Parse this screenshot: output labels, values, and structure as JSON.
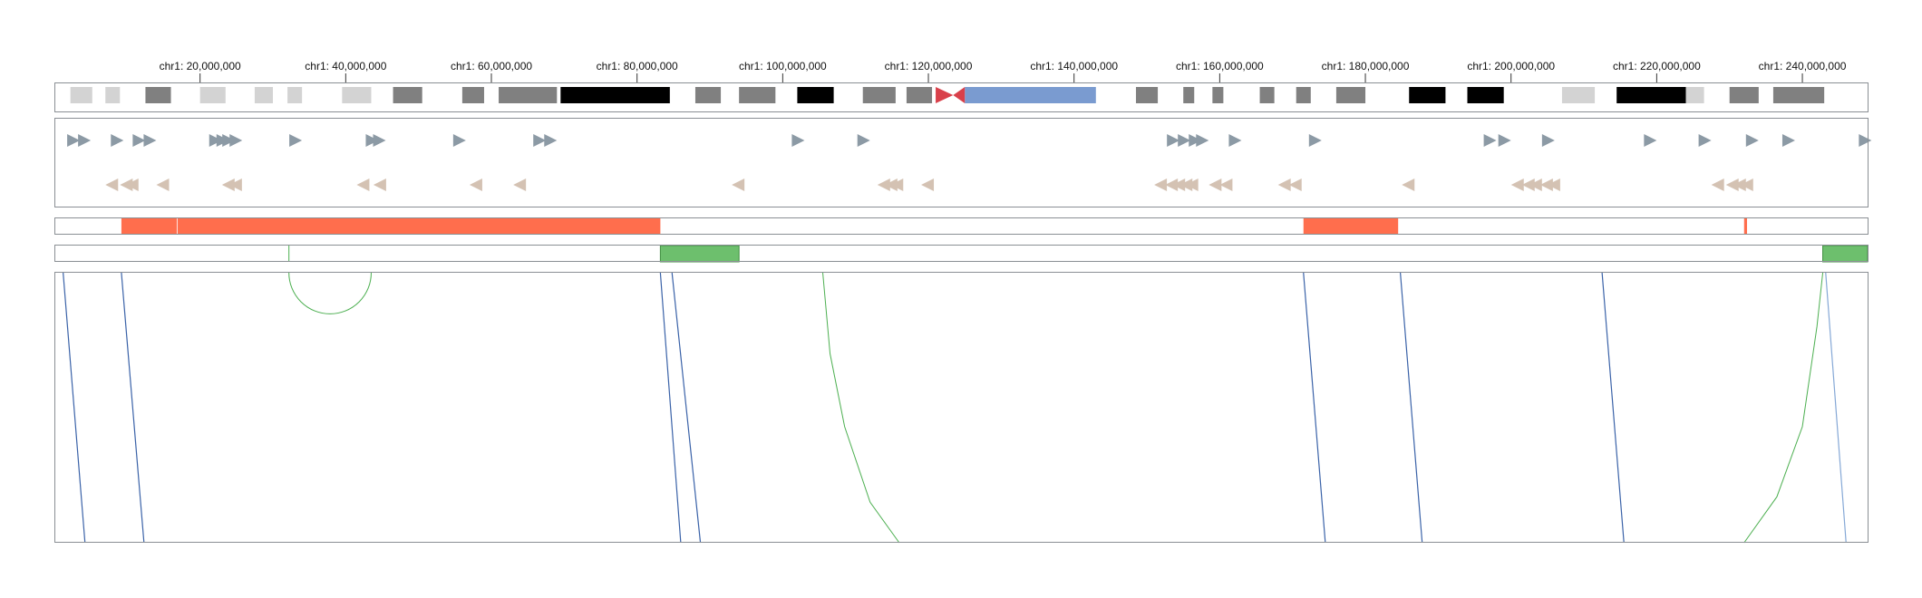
{
  "genome": {
    "chromosome": "chr1",
    "length": 248956422,
    "ticks": [
      {
        "pos": 20000000,
        "label": "chr1: 20,000,000"
      },
      {
        "pos": 40000000,
        "label": "chr1: 40,000,000"
      },
      {
        "pos": 60000000,
        "label": "chr1: 60,000,000"
      },
      {
        "pos": 80000000,
        "label": "chr1: 80,000,000"
      },
      {
        "pos": 100000000,
        "label": "chr1: 100,000,000"
      },
      {
        "pos": 120000000,
        "label": "chr1: 120,000,000"
      },
      {
        "pos": 140000000,
        "label": "chr1: 140,000,000"
      },
      {
        "pos": 160000000,
        "label": "chr1: 160,000,000"
      },
      {
        "pos": 180000000,
        "label": "chr1: 180,000,000"
      },
      {
        "pos": 200000000,
        "label": "chr1: 200,000,000"
      },
      {
        "pos": 220000000,
        "label": "chr1: 220,000,000"
      },
      {
        "pos": 240000000,
        "label": "chr1: 240,000,000"
      }
    ]
  },
  "colors": {
    "gpos25": "#d3d3d3",
    "gpos50": "#a8a8a8",
    "gpos75": "#808080",
    "gpos100": "#000000",
    "acen": "#d9404a",
    "gvar": "#7a9bd0",
    "forward": "#8c9aa5",
    "reverse": "#d4c2b3",
    "region_a": "#ff6e4d",
    "region_b": "#6dbf6d",
    "link_blue": "#3a62a8",
    "link_lightblue": "#85a8d6",
    "link_green": "#4caf50",
    "frame": "#8a8f94"
  },
  "ideogram": {
    "bands": [
      {
        "start": 2200000,
        "end": 5200000,
        "stain": "gpos25"
      },
      {
        "start": 7000000,
        "end": 9000000,
        "stain": "gpos25"
      },
      {
        "start": 12500000,
        "end": 16000000,
        "stain": "gpos75"
      },
      {
        "start": 20000000,
        "end": 23500000,
        "stain": "gpos25"
      },
      {
        "start": 27500000,
        "end": 30000000,
        "stain": "gpos25"
      },
      {
        "start": 32000000,
        "end": 34000000,
        "stain": "gpos25"
      },
      {
        "start": 39500000,
        "end": 43500000,
        "stain": "gpos25"
      },
      {
        "start": 46500000,
        "end": 50500000,
        "stain": "gpos75"
      },
      {
        "start": 56000000,
        "end": 59000000,
        "stain": "gpos75"
      },
      {
        "start": 61000000,
        "end": 69000000,
        "stain": "gpos75"
      },
      {
        "start": 69500000,
        "end": 84500000,
        "stain": "gpos100"
      },
      {
        "start": 88000000,
        "end": 91500000,
        "stain": "gpos75"
      },
      {
        "start": 94000000,
        "end": 99000000,
        "stain": "gpos75"
      },
      {
        "start": 102000000,
        "end": 107000000,
        "stain": "gpos100"
      },
      {
        "start": 111000000,
        "end": 115500000,
        "stain": "gpos75"
      },
      {
        "start": 117000000,
        "end": 120500000,
        "stain": "gpos75"
      },
      {
        "start": 124000000,
        "end": 236500000,
        "stain": "none"
      },
      {
        "start": 125000000,
        "end": 143000000,
        "stain": "gvar"
      },
      {
        "start": 148500000,
        "end": 151500000,
        "stain": "gpos75"
      },
      {
        "start": 155000000,
        "end": 156500000,
        "stain": "gpos75"
      },
      {
        "start": 159000000,
        "end": 160500000,
        "stain": "gpos75"
      },
      {
        "start": 165500000,
        "end": 167500000,
        "stain": "gpos75"
      },
      {
        "start": 170500000,
        "end": 172500000,
        "stain": "gpos75"
      },
      {
        "start": 176000000,
        "end": 180000000,
        "stain": "gpos75"
      },
      {
        "start": 186000000,
        "end": 191000000,
        "stain": "gpos100"
      },
      {
        "start": 194000000,
        "end": 199000000,
        "stain": "gpos100"
      },
      {
        "start": 207000000,
        "end": 211500000,
        "stain": "gpos25"
      },
      {
        "start": 214500000,
        "end": 224000000,
        "stain": "gpos100"
      },
      {
        "start": 224000000,
        "end": 226500000,
        "stain": "gpos25"
      },
      {
        "start": 230000000,
        "end": 234000000,
        "stain": "gpos75"
      },
      {
        "start": 236000000,
        "end": 243000000,
        "stain": "gpos75"
      }
    ],
    "centromere": {
      "start": 121000000,
      "mid": 123400000,
      "end": 125000000
    }
  },
  "forward_strand": [
    2500000,
    4000000,
    8500000,
    11500000,
    13000000,
    22000000,
    23000000,
    23800000,
    24800000,
    33000000,
    43500000,
    44500000,
    55500000,
    66500000,
    68000000,
    102000000,
    111000000,
    153500000,
    155000000,
    156500000,
    157500000,
    162000000,
    173000000,
    197000000,
    199000000,
    205000000,
    219000000,
    226500000,
    233000000,
    238000000,
    248500000
  ],
  "reverse_strand": [
    8000000,
    10000000,
    10800000,
    15000000,
    24000000,
    25000000,
    42500000,
    44800000,
    58000000,
    64000000,
    94000000,
    114000000,
    115000000,
    115800000,
    120000000,
    152000000,
    153500000,
    154500000,
    155500000,
    156300000,
    159500000,
    161000000,
    169000000,
    170500000,
    186000000,
    201000000,
    202500000,
    203500000,
    205000000,
    206000000,
    228500000,
    230500000,
    231500000,
    232500000
  ],
  "region_track_a": [
    {
      "start": 9200000,
      "end": 16800000
    },
    {
      "start": 16900000,
      "end": 83200000
    },
    {
      "start": 171500000,
      "end": 184500000
    },
    {
      "start": 232000000,
      "end": 232400000
    }
  ],
  "region_track_b": [
    {
      "start": 83200000,
      "end": 94000000
    },
    {
      "start": 242800000,
      "end": 248956422
    }
  ],
  "arc": {
    "start": 32200000,
    "end": 43500000
  },
  "links": [
    {
      "x1": 1200000,
      "x2": 4200000,
      "color": "link_blue"
    },
    {
      "x1": 9200000,
      "x2": 12300000,
      "color": "link_blue"
    },
    {
      "x1": 83200000,
      "x2": 86000000,
      "color": "link_blue"
    },
    {
      "x1": 84800000,
      "x2": 88700000,
      "color": "link_blue"
    },
    {
      "x1": 171500000,
      "x2": 174500000,
      "color": "link_blue"
    },
    {
      "x1": 184800000,
      "x2": 187800000,
      "color": "link_blue"
    },
    {
      "x1": 212500000,
      "x2": 215500000,
      "color": "link_blue"
    },
    {
      "x1": 243200000,
      "x2": 246000000,
      "color": "link_lightblue"
    }
  ],
  "curves": [
    {
      "pts": [
        [
          105500000,
          0
        ],
        [
          106500000,
          0.3
        ],
        [
          108500000,
          0.57
        ],
        [
          112000000,
          0.85
        ],
        [
          116000000,
          1
        ]
      ],
      "color": "link_green"
    },
    {
      "pts": [
        [
          242800000,
          0
        ],
        [
          242000000,
          0.2
        ],
        [
          240000000,
          0.57
        ],
        [
          236500000,
          0.83
        ],
        [
          232000000,
          1
        ]
      ],
      "color": "link_green"
    }
  ]
}
